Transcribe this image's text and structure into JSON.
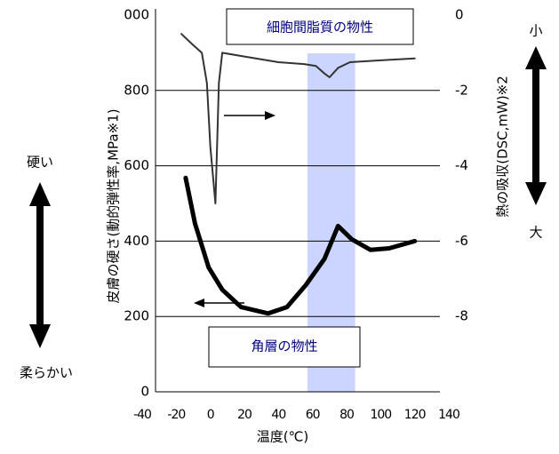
{
  "chart_data": {
    "type": "line",
    "x_label": "温度(℃)",
    "y_label": "皮膚の硬さ(動的弾性率,MPa※1)",
    "y2_label": "熱の吸収(DSC,mW)※2",
    "xlim": [
      -40,
      140
    ],
    "xticks": [
      -40,
      -20,
      0,
      20,
      40,
      60,
      80,
      100,
      120,
      140
    ],
    "ylim": [
      0,
      1000
    ],
    "yticks": [
      0,
      200,
      400,
      600,
      800,
      {
        "value": 1000,
        "label": "000"
      }
    ],
    "y2lim": [
      -10,
      0
    ],
    "y2ticks": [
      -8,
      -6,
      -4,
      -2,
      0
    ],
    "grid": true,
    "highlight_range": [
      57,
      85
    ],
    "highlight_color": "#ccd5ff",
    "series": [
      {
        "name": "細胞間脂質の物性",
        "color": "#333333",
        "axis": "y2",
        "x": [
          -17,
          -10,
          -5,
          -2,
          0,
          3,
          5,
          7,
          20,
          40,
          55,
          62,
          67,
          70,
          75,
          82,
          100,
          120
        ],
        "values": [
          -0.5,
          -0.8,
          -1.0,
          -1.8,
          -3.5,
          -5.0,
          -1.8,
          -1.0,
          -1.1,
          -1.25,
          -1.3,
          -1.35,
          -1.55,
          -1.65,
          -1.4,
          -1.25,
          -1.2,
          -1.15
        ]
      },
      {
        "name": "角層の物性",
        "color": "#000000",
        "axis": "y",
        "x": [
          -14.5,
          -9,
          -1,
          7,
          18,
          34,
          45,
          56,
          67,
          75,
          83,
          94,
          105,
          120
        ],
        "values": [
          568,
          447,
          330,
          271,
          225,
          208,
          225,
          283,
          353,
          440,
          405,
          377,
          381,
          400
        ]
      }
    ],
    "annotations": {
      "hard": "硬い",
      "soft": "柔らかい",
      "small": "小",
      "large": "大"
    }
  }
}
